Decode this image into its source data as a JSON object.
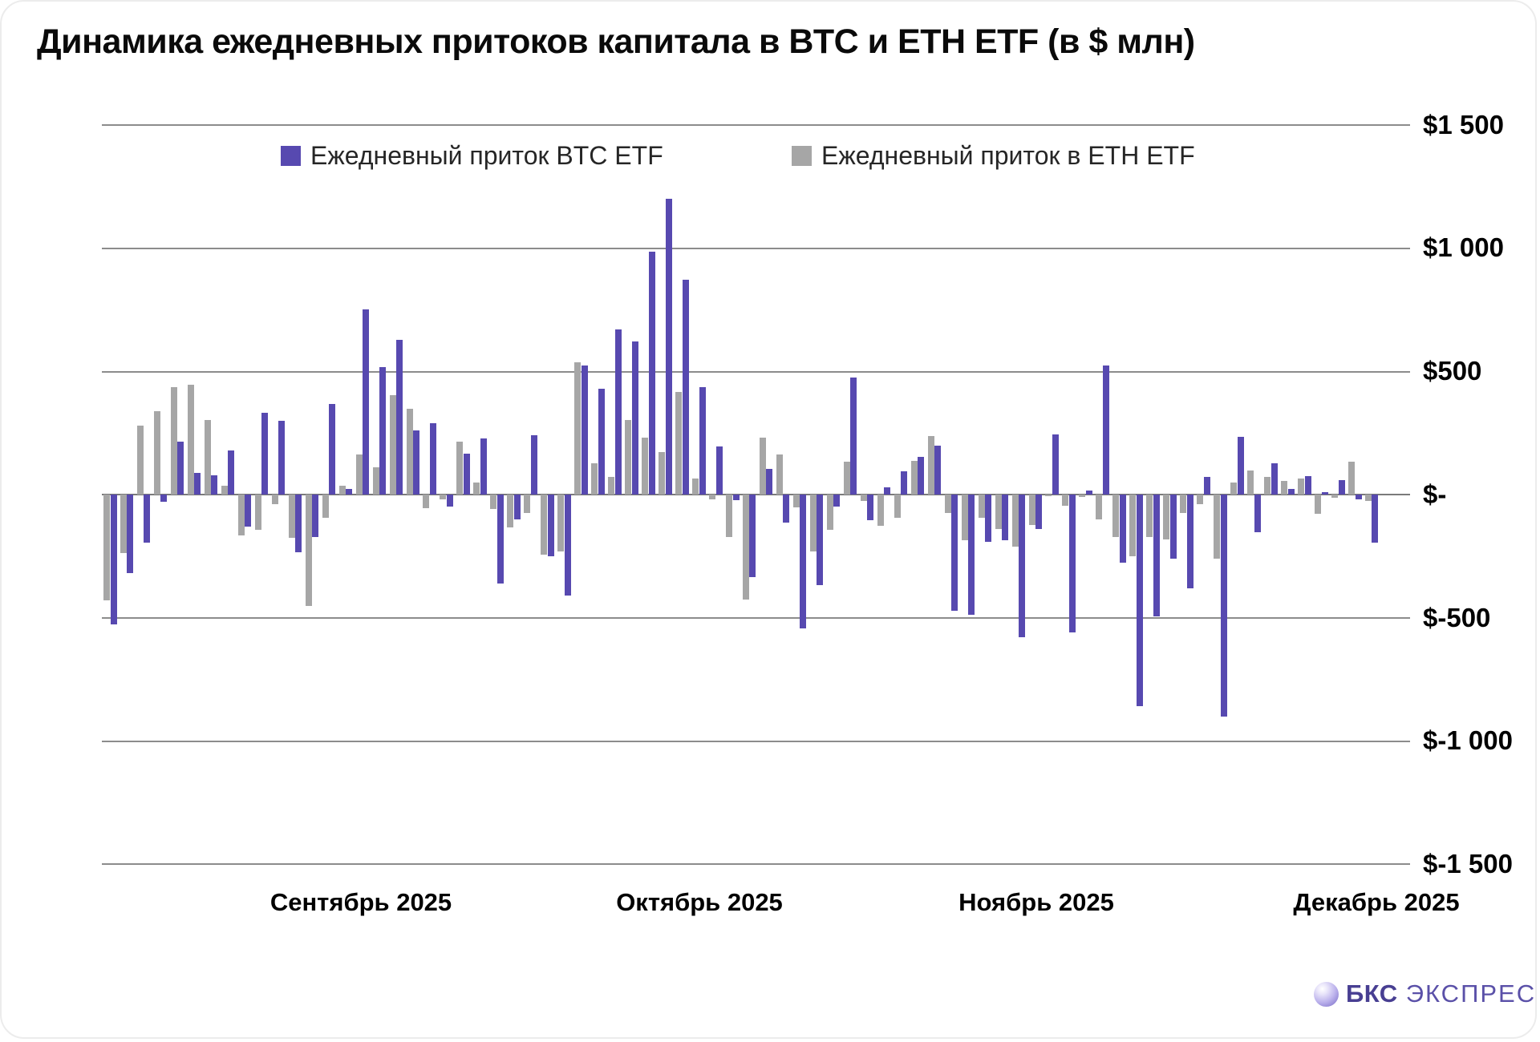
{
  "title": "Динамика ежедневных притоков капитала в BTC и ETH ETF (в $ млн)",
  "legend": {
    "btc": {
      "label": "Ежедневный приток BTC ETF",
      "color": "#5749B0"
    },
    "eth": {
      "label": "Ежедневный приток в ETH ETF",
      "color": "#A6A6A6"
    }
  },
  "y_axis": {
    "ticks": [
      {
        "value": 1500,
        "label": "$1 500"
      },
      {
        "value": 1000,
        "label": "$1 000"
      },
      {
        "value": 500,
        "label": "$500"
      },
      {
        "value": 0,
        "label": "$-"
      },
      {
        "value": -500,
        "label": "$-500"
      },
      {
        "value": -1000,
        "label": "$-1 000"
      },
      {
        "value": -1500,
        "label": "$-1 500"
      }
    ]
  },
  "x_axis": {
    "labels": [
      {
        "text": "Сентябрь 2025"
      },
      {
        "text": "Октябрь 2025"
      },
      {
        "text": "Ноябрь 2025"
      },
      {
        "text": "Декабрь 2025"
      }
    ]
  },
  "logo": {
    "brand": "БКС",
    "suffix": "ЭКСПРЕСС"
  },
  "chart_data": {
    "type": "bar",
    "title": "Динамика ежедневных притоков капитала в BTC и ETH ETF (в $ млн)",
    "unit": "$ млн",
    "n_days": 76,
    "ylim": [
      -1500,
      1500
    ],
    "gridlines": [
      1500,
      1000,
      500,
      0,
      -500,
      -1000,
      -1500
    ],
    "grid": true,
    "legend_position": "top-center",
    "x_tick_labels": [
      "Сентябрь 2025",
      "Октябрь 2025",
      "Ноябрь 2025",
      "Декабрь 2025"
    ],
    "group_order": [
      "eth",
      "btc"
    ],
    "series": [
      {
        "id": "btc",
        "name": "Ежедневный приток BTC ETF",
        "color": "#5749B0",
        "values": [
          -527,
          -319,
          -195,
          -29,
          216,
          87,
          79,
          181,
          -130,
          332,
          300,
          -235,
          -173,
          368,
          25,
          751,
          519,
          630,
          262,
          291,
          -49,
          165,
          227,
          -359,
          -101,
          243,
          -249,
          -408,
          523,
          431,
          671,
          622,
          986,
          1202,
          872,
          437,
          196,
          -22,
          -334,
          104,
          -112,
          -542,
          -368,
          -47,
          476,
          -102,
          29,
          94,
          152,
          200,
          -472,
          -487,
          -190,
          -184,
          -580,
          -138,
          244,
          -558,
          16,
          523,
          -277,
          -858,
          -494,
          -259,
          -380,
          71,
          -902,
          235,
          -151,
          129,
          25,
          75,
          12,
          59,
          -20,
          -196
        ]
      },
      {
        "id": "eth",
        "name": "Ежедневный приток в ETH ETF",
        "color": "#A6A6A6",
        "values": [
          -430,
          -238,
          281,
          339,
          436,
          447,
          303,
          36,
          -166,
          -141,
          -38,
          -176,
          -451,
          -94,
          38,
          162,
          110,
          403,
          350,
          -55,
          -20,
          214,
          49,
          -58,
          -132,
          -74,
          -243,
          -229,
          538,
          126,
          73,
          303,
          231,
          172,
          417,
          65,
          -20,
          -171,
          -425,
          231,
          163,
          -50,
          -230,
          -144,
          133,
          -24,
          -125,
          -94,
          136,
          238,
          -75,
          -186,
          -94,
          -138,
          -212,
          -124,
          -6,
          -44,
          -8,
          -101,
          -172,
          -250,
          -172,
          -180,
          -73,
          -39,
          -259,
          51,
          98,
          71,
          55,
          65,
          -78,
          -14,
          133,
          -27
        ]
      }
    ]
  }
}
